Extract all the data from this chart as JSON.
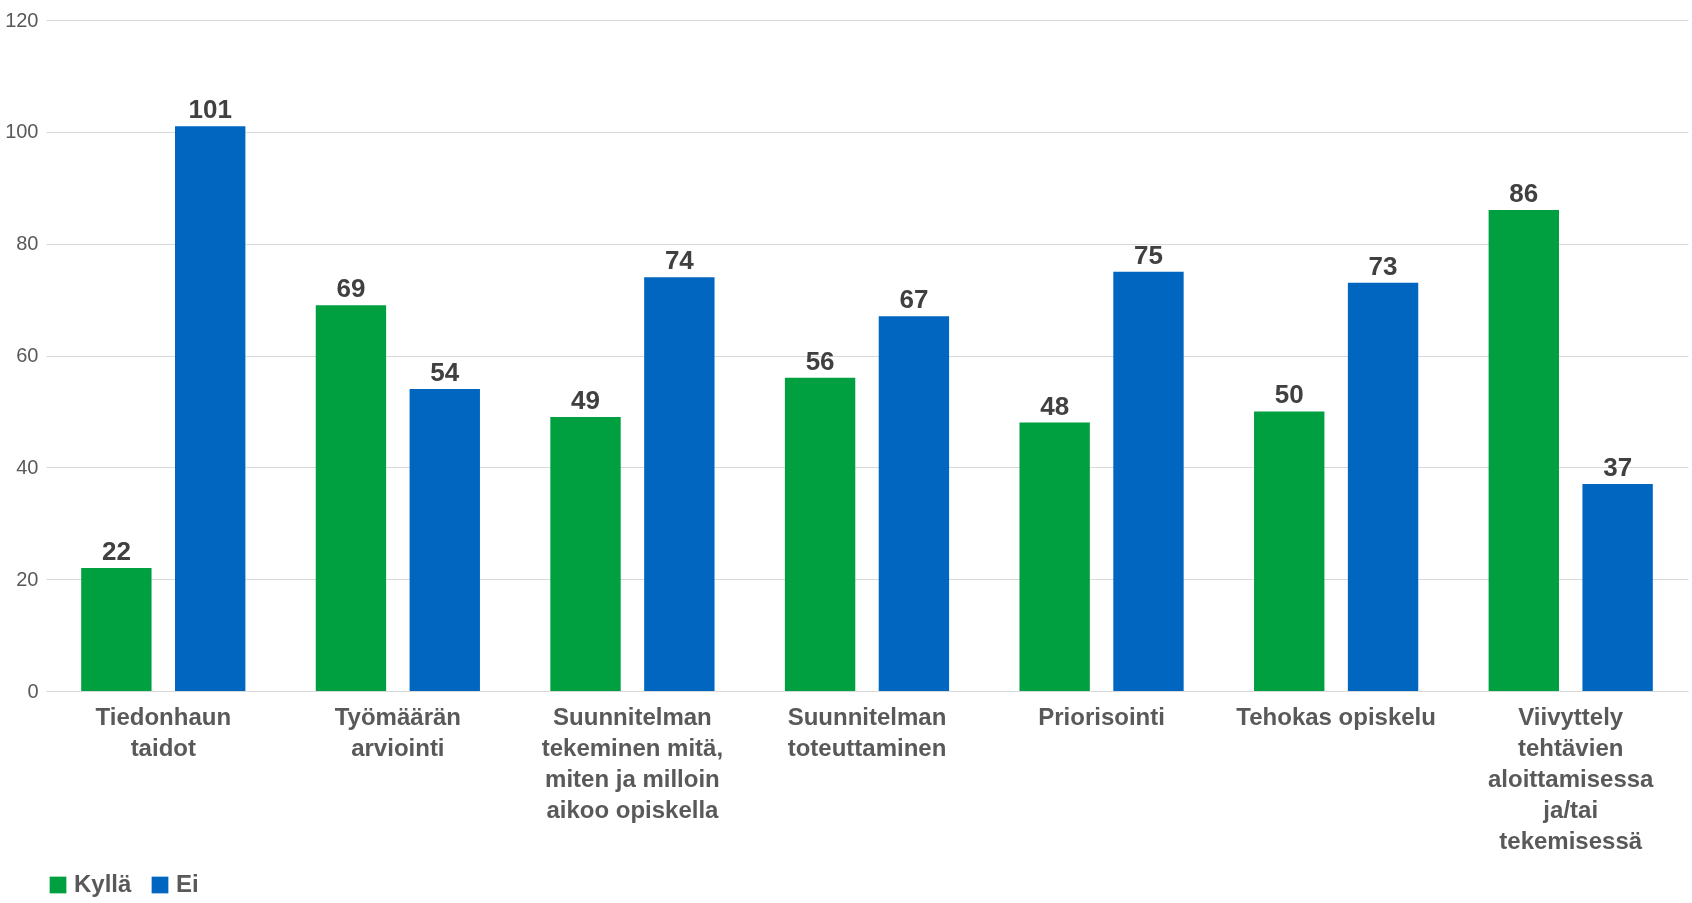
{
  "chart_data": {
    "type": "bar",
    "categories": [
      "Tiedonhaun taidot",
      "Työmäärän arviointi",
      "Suunnitelman tekeminen mitä, miten ja milloin aikoo opiskella",
      "Suunnitelman toteuttaminen",
      "Priorisointi",
      "Tehokas opiskelu",
      "Viivyttely tehtävien aloittamisessa ja/tai tekemisessä"
    ],
    "series": [
      {
        "name": "Kyllä",
        "color": "#00a040",
        "values": [
          22,
          69,
          49,
          56,
          48,
          50,
          86
        ]
      },
      {
        "name": "Ei",
        "color": "#0066c0",
        "values": [
          101,
          54,
          74,
          67,
          75,
          73,
          37
        ]
      }
    ],
    "ylim": [
      0,
      120
    ],
    "yticks": [
      0,
      20,
      40,
      60,
      80,
      100,
      120
    ],
    "grid": "y",
    "legend": "bottom",
    "data_labels": true
  }
}
